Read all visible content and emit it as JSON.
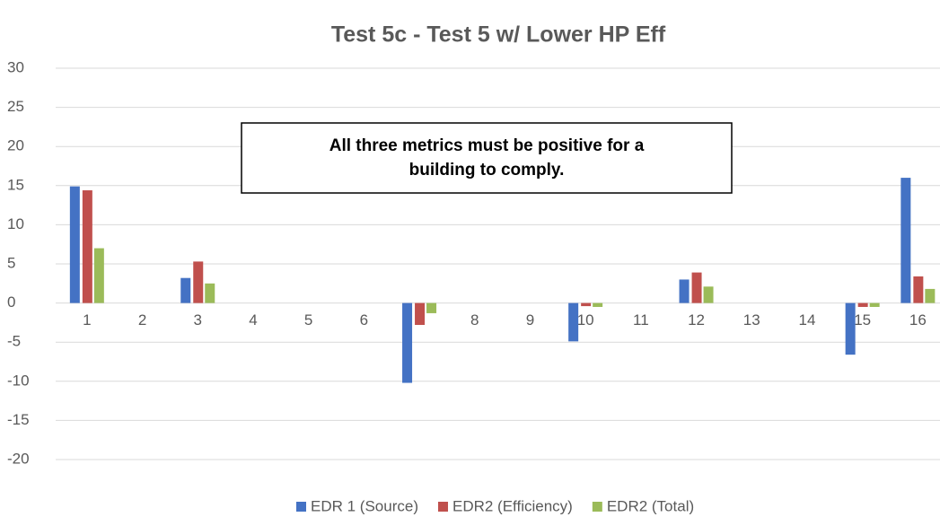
{
  "chart_data": {
    "type": "bar",
    "title": "Test 5c - Test 5 w/ Lower HP Eff",
    "annotation": "All three metrics must be positive for a building to comply.",
    "categories": [
      "1",
      "2",
      "3",
      "4",
      "5",
      "6",
      "7",
      "8",
      "9",
      "10",
      "11",
      "12",
      "13",
      "14",
      "15",
      "16"
    ],
    "series": [
      {
        "name": "EDR 1 (Source)",
        "color": "#4472c4",
        "values": [
          14.9,
          null,
          3.2,
          null,
          null,
          null,
          -10.2,
          null,
          null,
          -4.9,
          null,
          3.0,
          null,
          null,
          -6.6,
          16.0
        ]
      },
      {
        "name": "EDR2 (Efficiency)",
        "color": "#c0504d",
        "values": [
          14.4,
          null,
          5.3,
          null,
          null,
          null,
          -2.8,
          null,
          null,
          -0.4,
          null,
          3.9,
          null,
          null,
          -0.5,
          3.4
        ]
      },
      {
        "name": "EDR2 (Total)",
        "color": "#9bbb59",
        "values": [
          7.0,
          null,
          2.5,
          null,
          null,
          null,
          -1.3,
          null,
          null,
          -0.5,
          null,
          2.1,
          null,
          null,
          -0.5,
          1.8
        ]
      }
    ],
    "ylim": [
      -20,
      30
    ],
    "yticks": [
      -20,
      -15,
      -10,
      -5,
      0,
      5,
      10,
      15,
      20,
      25,
      30
    ],
    "grid": true,
    "legend": "bottom"
  }
}
